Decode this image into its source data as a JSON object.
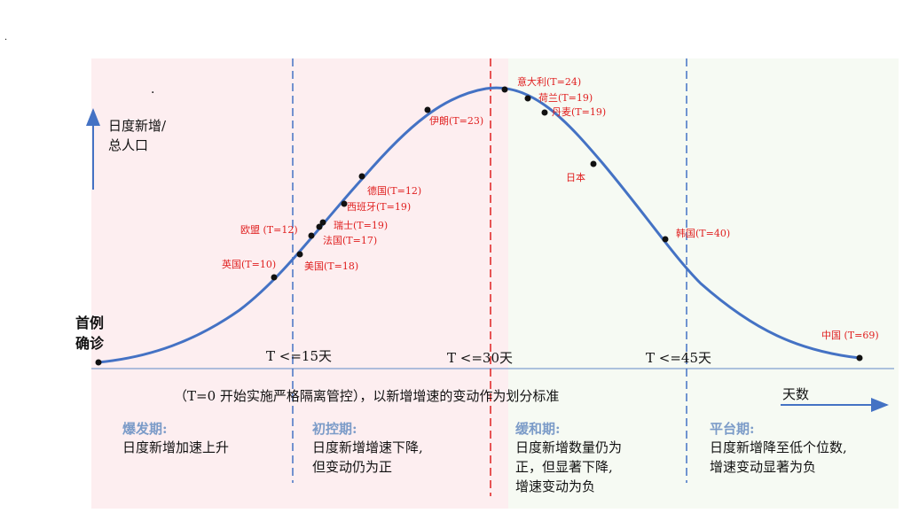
{
  "y_axis_label_line1": "日度新增/",
  "y_axis_label_line2": "总人口",
  "origin_label_line1": "首例",
  "origin_label_line2": "确诊",
  "x_axis_label": "天数",
  "thresholds": [
    "T <=15天",
    "T <=30天",
    "T <=45天"
  ],
  "note": "（T=0 开始实施严格隔离管控），以新增增速的变动作为划分标准",
  "phases": [
    {
      "name": "爆发期:",
      "desc": [
        "日度新增加速上升"
      ]
    },
    {
      "name": "初控期:",
      "desc": [
        "日度新增增速下降,",
        "但变动仍为正"
      ]
    },
    {
      "name": "缓和期:",
      "desc": [
        "日度新增数量仍为",
        "正，但显著下降,",
        "增速变动为负"
      ]
    },
    {
      "name": "平台期:",
      "desc": [
        "日度新增降至低个位数,",
        "增速变动显著为负"
      ]
    }
  ],
  "points": [
    {
      "label": "英国(T=10)"
    },
    {
      "label": "美国(T=18)"
    },
    {
      "label": "欧盟 (T=12)"
    },
    {
      "label": "法国(T=17)"
    },
    {
      "label": "瑞士(T=19)"
    },
    {
      "label": "西班牙(T=19)"
    },
    {
      "label": "德国(T=12)"
    },
    {
      "label": "伊朗(T=23)"
    },
    {
      "label": "意大利(T=24)"
    },
    {
      "label": "荷兰(T=19)"
    },
    {
      "label": "丹麦(T=19)"
    },
    {
      "label": "日本"
    },
    {
      "label": "韩国(T=40)"
    },
    {
      "label": "中国 (T=69)"
    }
  ],
  "colors": {
    "curve": "#4472c4",
    "boundary_dashed": "#4472c4",
    "peak_dashed": "#e02020",
    "label_red": "#e02020",
    "phase_title": "#7b9bc8"
  }
}
